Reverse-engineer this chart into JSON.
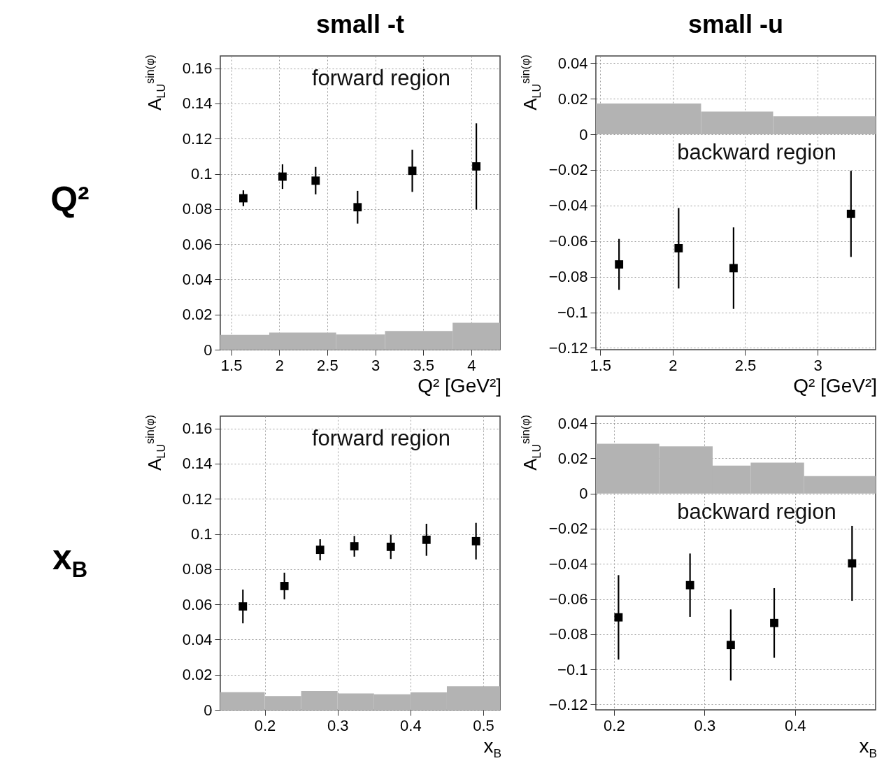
{
  "chart_data": [
    {
      "type": "scatter",
      "title": "small -t",
      "xlabel": "Q² [GeV²]",
      "ylabel": "A$_{LU}$$^{sin(φ)}$",
      "annotations": [
        "forward region",
        "Q²"
      ],
      "xlim": [
        1.386,
        4.3
      ],
      "xticks": [
        1.5,
        2,
        2.5,
        3,
        3.5,
        4
      ],
      "ylim": [
        0,
        0.167
      ],
      "yticks": [
        0,
        0.02,
        0.04,
        0.06,
        0.08,
        0.1,
        0.12,
        0.14,
        0.16
      ],
      "grid": true,
      "marker": "square",
      "series": [
        {
          "type": "histogram",
          "color": "#b3b3b3",
          "bins": [
            1.386,
            1.896,
            2.593,
            3.102,
            3.806,
            4.3
          ],
          "values": [
            0.0084,
            0.0097,
            0.0086,
            0.0106,
            0.0153
          ]
        },
        {
          "type": "scatter",
          "color": "#000000",
          "x": [
            1.626,
            2.034,
            2.379,
            2.816,
            3.386,
            4.053
          ],
          "values": [
            0.0861,
            0.0984,
            0.0961,
            0.081,
            0.1017,
            0.1042
          ],
          "errors": [
            0.0045,
            0.007,
            0.0078,
            0.0093,
            0.012,
            0.0245
          ]
        }
      ]
    },
    {
      "type": "scatter",
      "title": "small -u",
      "xlabel": "Q² [GeV²]",
      "ylabel": "A$_{LU}$$^{sin(φ)}$",
      "annotations": [
        "backward region"
      ],
      "xlim": [
        1.47,
        3.4
      ],
      "xticks": [
        1.5,
        2,
        2.5,
        3
      ],
      "ylim": [
        -0.121,
        0.044
      ],
      "yticks": [
        {
          "value": -0.12,
          "label": "−0.12"
        },
        {
          "value": -0.1,
          "label": "−0.1"
        },
        {
          "value": -0.08,
          "label": "−0.08"
        },
        {
          "value": -0.06,
          "label": "−0.06"
        },
        {
          "value": -0.04,
          "label": "−0.04"
        },
        {
          "value": -0.02,
          "label": "−0.02"
        },
        0,
        0.02,
        0.04
      ],
      "grid": true,
      "marker": "square",
      "series": [
        {
          "type": "histogram",
          "color": "#b3b3b3",
          "bins": [
            1.47,
            2.196,
            2.693,
            3.4
          ],
          "values": [
            0.0173,
            0.0128,
            0.0101
          ]
        },
        {
          "type": "scatter",
          "color": "#000000",
          "x": [
            1.63,
            2.041,
            2.42,
            3.23
          ],
          "values": [
            -0.0731,
            -0.064,
            -0.0752,
            -0.0447
          ],
          "errors": [
            0.0143,
            0.0226,
            0.0229,
            0.0242
          ]
        }
      ]
    },
    {
      "type": "scatter",
      "xlabel": "x$_{B}$",
      "ylabel": "A$_{LU}$$^{sin(φ)}$",
      "annotations": [
        "forward region",
        "x$_{B}$"
      ],
      "xlim": [
        0.139,
        0.523
      ],
      "xticks": [
        0.2,
        0.3,
        0.4,
        0.5
      ],
      "ylim": [
        0,
        0.167
      ],
      "yticks": [
        0,
        0.02,
        0.04,
        0.06,
        0.08,
        0.1,
        0.12,
        0.14,
        0.16
      ],
      "grid": true,
      "marker": "square",
      "series": [
        {
          "type": "histogram",
          "color": "#b3b3b3",
          "bins": [
            0.139,
            0.2,
            0.25,
            0.3,
            0.35,
            0.4,
            0.45,
            0.523
          ],
          "values": [
            0.01,
            0.0079,
            0.0107,
            0.0093,
            0.0088,
            0.0099,
            0.0134
          ]
        },
        {
          "type": "scatter",
          "color": "#000000",
          "x": [
            0.17,
            0.227,
            0.276,
            0.323,
            0.373,
            0.422,
            0.49
          ],
          "values": [
            0.0588,
            0.0704,
            0.091,
            0.093,
            0.0927,
            0.0967,
            0.0959
          ],
          "errors": [
            0.0096,
            0.0076,
            0.006,
            0.0059,
            0.0069,
            0.0091,
            0.0104
          ]
        }
      ]
    },
    {
      "type": "scatter",
      "xlabel": "x$_{B}$",
      "ylabel": "A$_{LU}$$^{sin(φ)}$",
      "annotations": [
        "backward region"
      ],
      "xlim": [
        0.18,
        0.489
      ],
      "xticks": [
        0.2,
        0.3,
        0.4
      ],
      "ylim": [
        -0.123,
        0.044
      ],
      "yticks": [
        {
          "value": -0.12,
          "label": "−0.12"
        },
        {
          "value": -0.1,
          "label": "−0.1"
        },
        {
          "value": -0.08,
          "label": "−0.08"
        },
        {
          "value": -0.06,
          "label": "−0.06"
        },
        {
          "value": -0.04,
          "label": "−0.04"
        },
        {
          "value": -0.02,
          "label": "−0.02"
        },
        0,
        0.02,
        0.04
      ],
      "grid": true,
      "marker": "square",
      "series": [
        {
          "type": "histogram",
          "color": "#b3b3b3",
          "bins": [
            0.18,
            0.25,
            0.309,
            0.351,
            0.41,
            0.489
          ],
          "values": [
            0.0283,
            0.0268,
            0.0159,
            0.0176,
            0.0099
          ]
        },
        {
          "type": "scatter",
          "color": "#000000",
          "x": [
            0.205,
            0.284,
            0.329,
            0.377,
            0.463
          ],
          "values": [
            -0.0704,
            -0.0521,
            -0.0861,
            -0.0736,
            -0.0397
          ],
          "errors": [
            0.024,
            0.018,
            0.0202,
            0.0198,
            0.0213
          ]
        }
      ]
    }
  ]
}
